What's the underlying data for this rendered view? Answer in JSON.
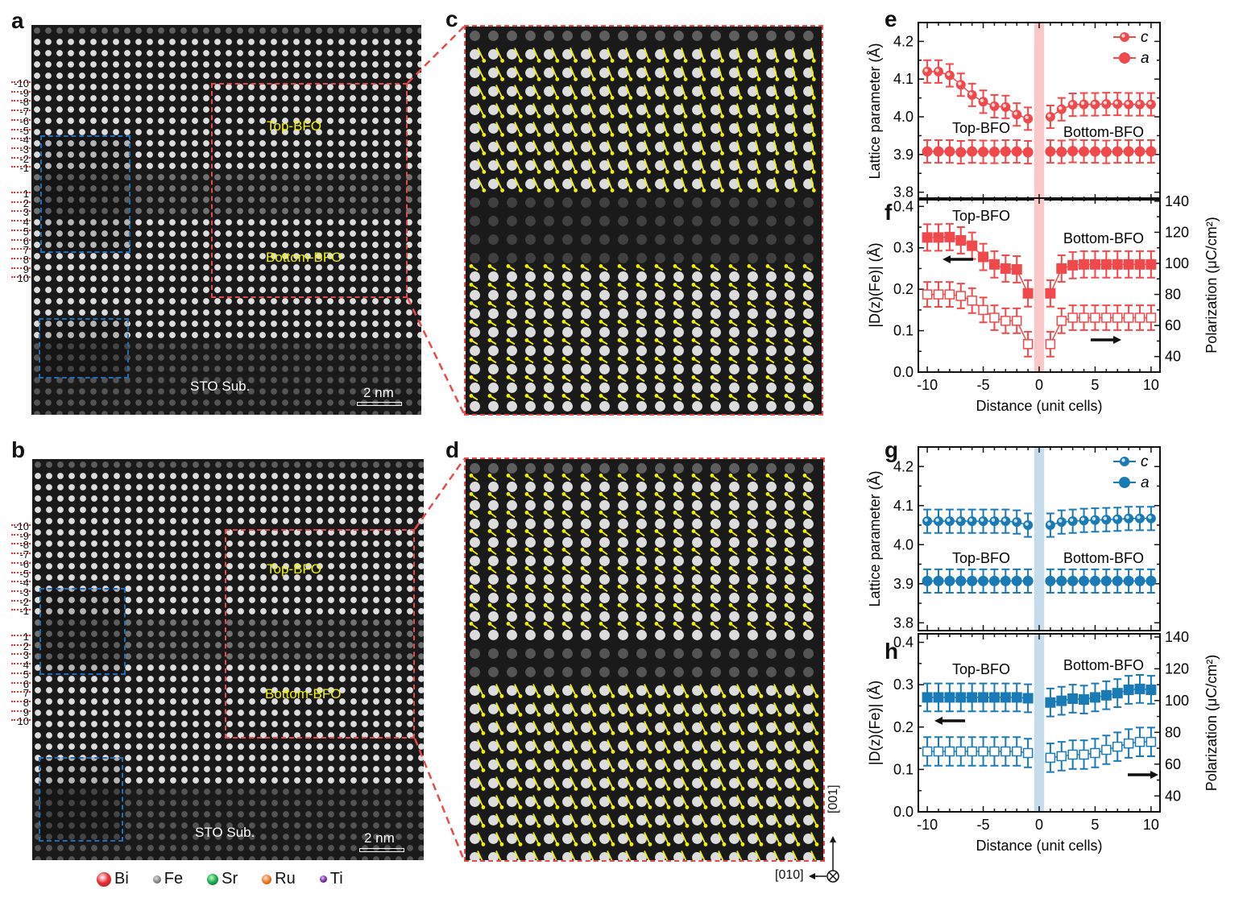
{
  "panel_labels": {
    "a": "a",
    "b": "b",
    "c": "c",
    "d": "d",
    "e": "e",
    "f": "f",
    "g": "g",
    "h": "h"
  },
  "stem": {
    "top_label": "Top-BFO",
    "bottom_label": "Bottom-BFO",
    "substrate_label": "STO Sub.",
    "scale_bar": "2 nm",
    "unit_cell_top": [
      "-10",
      "-9",
      "-8",
      "-7",
      "-6",
      "-5",
      "-4",
      "-3",
      "-2",
      "-1"
    ],
    "unit_cell_bottom": [
      "1",
      "2",
      "3",
      "4",
      "5",
      "6",
      "7",
      "8",
      "9",
      "10"
    ],
    "overlay_box_color": "#1c6fb8",
    "zoom_box_color": "#e84a4a",
    "arrow_color": "#f2f200"
  },
  "atom_legend": [
    {
      "name": "Bi",
      "color": "#e8333b"
    },
    {
      "name": "Fe",
      "color": "#8a8a8a"
    },
    {
      "name": "Sr",
      "color": "#1aa553"
    },
    {
      "name": "Ru",
      "color": "#ee7a22"
    },
    {
      "name": "Ti",
      "color": "#7a2fa8"
    }
  ],
  "orientation": {
    "vertical": "[001]",
    "horizontal": "[010]",
    "out_of_plane": "⊗"
  },
  "chart_data": [
    {
      "id": "e",
      "type": "scatter",
      "color": "#f0494b",
      "shade": "#f9c9c9",
      "title": "",
      "xlabel": "Distance (unit cells)",
      "ylabel": "Lattice parameter (Å)",
      "xlim": [
        -10.8,
        10.8
      ],
      "ylim": [
        3.78,
        4.25
      ],
      "yticks": [
        3.8,
        3.9,
        4.0,
        4.1,
        4.2
      ],
      "xticks": [
        -10,
        -5,
        0,
        5,
        10
      ],
      "legend_position": "top-right",
      "annotations": [
        "Top-BFO",
        "Bottom-BFO"
      ],
      "x": [
        -10,
        -9,
        -8,
        -7,
        -6,
        -5,
        -4,
        -3,
        -2,
        -1,
        1,
        2,
        3,
        4,
        5,
        6,
        7,
        8,
        9,
        10
      ],
      "series": [
        {
          "name": "c",
          "marker": "hollow-circle",
          "values": [
            4.12,
            4.12,
            4.11,
            4.085,
            4.058,
            4.04,
            4.028,
            4.026,
            4.006,
            3.995,
            4.0,
            4.02,
            4.032,
            4.033,
            4.033,
            4.034,
            4.034,
            4.033,
            4.033,
            4.033
          ],
          "err": 0.03
        },
        {
          "name": "a",
          "marker": "circle",
          "values": [
            3.908,
            3.908,
            3.908,
            3.906,
            3.908,
            3.907,
            3.907,
            3.908,
            3.908,
            3.906,
            3.908,
            3.907,
            3.909,
            3.908,
            3.908,
            3.907,
            3.908,
            3.908,
            3.908,
            3.908
          ],
          "err": 0.03
        }
      ]
    },
    {
      "id": "f",
      "type": "scatter",
      "color": "#f0494b",
      "shade": "#f9c9c9",
      "xlabel": "Distance (unit cells)",
      "ylabel": "|D(z)(Fe)| (Å)",
      "ylabel2": "Polarization (μC/cm²)",
      "xlim": [
        -10.8,
        10.8
      ],
      "ylim": [
        0,
        0.42
      ],
      "ylim2": [
        30,
        142
      ],
      "yticks": [
        0.0,
        0.1,
        0.2,
        0.3,
        0.4
      ],
      "yticks2": [
        40,
        60,
        80,
        100,
        120,
        140
      ],
      "xticks": [
        -10,
        -5,
        0,
        5,
        10
      ],
      "annotations": [
        "Top-BFO",
        "Bottom-BFO"
      ],
      "x": [
        -10,
        -9,
        -8,
        -7,
        -6,
        -5,
        -4,
        -3,
        -2,
        -1,
        1,
        2,
        3,
        4,
        5,
        6,
        7,
        8,
        9,
        10
      ],
      "series": [
        {
          "name": "D_Fe",
          "axis": "left",
          "marker": "square",
          "values": [
            0.325,
            0.325,
            0.326,
            0.318,
            0.305,
            0.278,
            0.26,
            0.25,
            0.248,
            0.19,
            0.19,
            0.25,
            0.258,
            0.26,
            0.26,
            0.26,
            0.26,
            0.26,
            0.26,
            0.26
          ],
          "err": 0.032
        },
        {
          "name": "Polarization",
          "axis": "right",
          "marker": "hollow-square",
          "values": [
            80,
            80,
            80,
            79,
            76,
            70,
            65,
            63,
            63,
            48,
            48,
            63,
            65,
            65,
            65,
            65,
            65,
            65,
            65,
            65
          ],
          "err": 8
        }
      ]
    },
    {
      "id": "g",
      "type": "scatter",
      "color": "#1a7ab5",
      "shade": "#c4dcec",
      "xlabel": "",
      "ylabel": "Lattice parameter (Å)",
      "xlim": [
        -10.8,
        10.8
      ],
      "ylim": [
        3.78,
        4.25
      ],
      "yticks": [
        3.8,
        3.9,
        4.0,
        4.1,
        4.2
      ],
      "xticks": [
        -10,
        -5,
        0,
        5,
        10
      ],
      "legend_position": "top-right",
      "annotations": [
        "Top-BFO",
        "Bottom-BFO"
      ],
      "x": [
        -10,
        -9,
        -8,
        -7,
        -6,
        -5,
        -4,
        -3,
        -2,
        -1,
        1,
        2,
        3,
        4,
        5,
        6,
        7,
        8,
        9,
        10
      ],
      "series": [
        {
          "name": "c",
          "marker": "hollow-circle",
          "values": [
            4.06,
            4.06,
            4.06,
            4.06,
            4.06,
            4.06,
            4.06,
            4.06,
            4.058,
            4.05,
            4.05,
            4.058,
            4.06,
            4.062,
            4.063,
            4.064,
            4.065,
            4.067,
            4.067,
            4.067
          ],
          "err": 0.03
        },
        {
          "name": "a",
          "marker": "circle",
          "values": [
            3.907,
            3.907,
            3.907,
            3.907,
            3.907,
            3.907,
            3.907,
            3.907,
            3.907,
            3.907,
            3.907,
            3.907,
            3.907,
            3.907,
            3.907,
            3.907,
            3.907,
            3.907,
            3.907,
            3.907
          ],
          "err": 0.03
        }
      ]
    },
    {
      "id": "h",
      "type": "scatter",
      "color": "#1a7ab5",
      "shade": "#c4dcec",
      "xlabel": "Distance (unit cells)",
      "ylabel": "|D(z)(Fe)| (Å)",
      "ylabel2": "Polarization (μC/cm²)",
      "xlim": [
        -10.8,
        10.8
      ],
      "ylim": [
        0,
        0.42
      ],
      "ylim2": [
        30,
        142
      ],
      "yticks": [
        0.0,
        0.1,
        0.2,
        0.3,
        0.4
      ],
      "yticks2": [
        40,
        60,
        80,
        100,
        120,
        140
      ],
      "xticks": [
        -10,
        -5,
        0,
        5,
        10
      ],
      "annotations": [
        "Top-BFO",
        "Bottom-BFO"
      ],
      "x": [
        -10,
        -9,
        -8,
        -7,
        -6,
        -5,
        -4,
        -3,
        -2,
        -1,
        1,
        2,
        3,
        4,
        5,
        6,
        7,
        8,
        9,
        10
      ],
      "series": [
        {
          "name": "D_Fe",
          "axis": "left",
          "marker": "square",
          "values": [
            0.27,
            0.27,
            0.27,
            0.27,
            0.27,
            0.27,
            0.27,
            0.27,
            0.27,
            0.268,
            0.258,
            0.262,
            0.267,
            0.265,
            0.27,
            0.275,
            0.28,
            0.288,
            0.29,
            0.288
          ],
          "err": 0.033
        },
        {
          "name": "Polarization",
          "axis": "right",
          "marker": "hollow-square",
          "values": [
            68,
            68,
            68,
            68,
            68,
            68,
            68,
            68,
            68,
            67,
            64,
            65,
            66,
            66,
            67,
            69,
            71,
            73,
            74,
            74
          ],
          "err": 9
        }
      ]
    }
  ]
}
